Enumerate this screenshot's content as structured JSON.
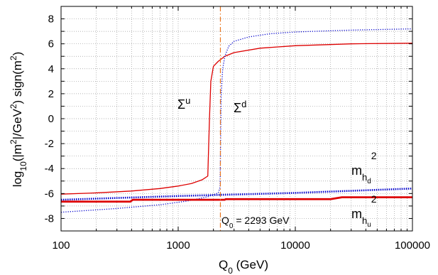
{
  "chart_data": {
    "type": "line",
    "x_scale": "log",
    "xlim": [
      100,
      100000
    ],
    "ylim": [
      -9,
      9
    ],
    "grid": true,
    "xlabel": "Q0 (GeV)",
    "ylabel": "log10(|m²|/GeV²) sign(m²)",
    "x_ticks": [
      "100",
      "1000",
      "10000",
      "100000"
    ],
    "y_ticks": [
      "-8",
      "-6",
      "-4",
      "-2",
      "0",
      "2",
      "4",
      "6",
      "8"
    ],
    "vline": {
      "x": 2293,
      "label": "Q0 = 2293 GeV",
      "color": "#e87722"
    },
    "annotations": {
      "sigma_u": "Σu",
      "sigma_d": "Σd",
      "mhd2": "mhd²",
      "mhu2": "mhu²"
    },
    "series": [
      {
        "key": "sigma_u",
        "color": "#dd0000",
        "style": "solid",
        "width": 1.3,
        "x": [
          100,
          200,
          400,
          700,
          1000,
          1300,
          1600,
          1790,
          1810,
          1850,
          1900,
          2000,
          2200,
          2500,
          3000,
          5000,
          10000,
          30000,
          100000
        ],
        "y": [
          -6.05,
          -5.95,
          -5.8,
          -5.6,
          -5.4,
          -5.2,
          -4.9,
          -4.6,
          -3.0,
          0.0,
          3.0,
          4.2,
          4.6,
          5.0,
          5.3,
          5.65,
          5.85,
          6.0,
          6.05
        ]
      },
      {
        "key": "sigma_d",
        "color": "#0000cc",
        "style": "dotted",
        "width": 1.3,
        "x": [
          100,
          300,
          700,
          1200,
          1800,
          2200,
          2280,
          2300,
          2330,
          2400,
          2500,
          2700,
          3000,
          4000,
          6000,
          10000,
          30000,
          100000
        ],
        "y": [
          -7.5,
          -7.2,
          -6.9,
          -6.6,
          -6.25,
          -5.95,
          -5.5,
          -2.0,
          2.0,
          4.0,
          5.0,
          5.8,
          6.2,
          6.55,
          6.8,
          6.95,
          7.1,
          7.2
        ]
      },
      {
        "key": "mhd2",
        "color": "#0000cc",
        "style": "dotted",
        "width": 2.6,
        "x": [
          100,
          1000,
          10000,
          100000
        ],
        "y": [
          -6.5,
          -6.2,
          -5.95,
          -5.6
        ]
      },
      {
        "key": "mhu2",
        "color": "#dd0000",
        "style": "solid",
        "width": 2.8,
        "x": [
          100,
          390,
          410,
          2500,
          2550,
          20000,
          25000,
          100000
        ],
        "y": [
          -6.65,
          -6.65,
          -6.5,
          -6.5,
          -6.45,
          -6.45,
          -6.3,
          -6.3
        ]
      }
    ]
  }
}
